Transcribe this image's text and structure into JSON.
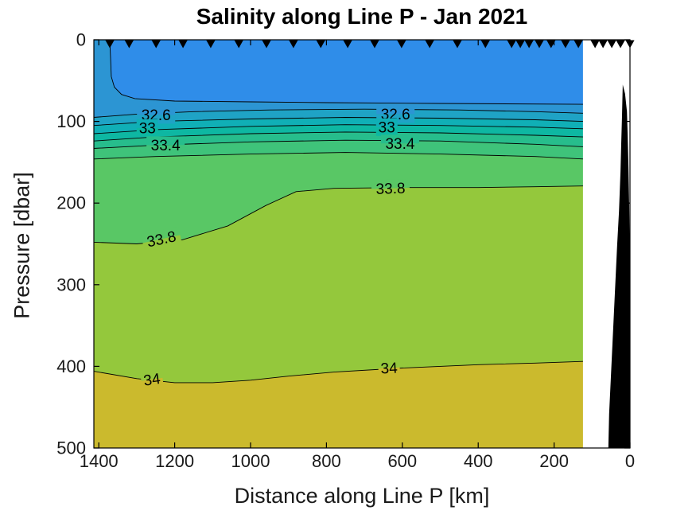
{
  "title": "Salinity along Line P - Jan 2021",
  "axes": {
    "xlabel": "Distance along Line P [km]",
    "ylabel": "Pressure [dbar]",
    "x_ticks": [
      1400,
      1200,
      1000,
      800,
      600,
      400,
      200,
      0
    ],
    "y_ticks": [
      0,
      100,
      200,
      300,
      400,
      500
    ],
    "x_max": 1413,
    "y_max": 500,
    "x_direction": "reversed",
    "box": true,
    "tick_dir": "in"
  },
  "chart_data": {
    "type": "heatmap",
    "subtype": "filled-contour-section",
    "title": "Salinity along Line P - Jan 2021",
    "xlabel": "Distance along Line P [km]",
    "ylabel": "Pressure [dbar]",
    "xlim": [
      1413,
      0
    ],
    "ylim": [
      0,
      500
    ],
    "data_extent_km": [
      124,
      1413
    ],
    "contour_interval": 0.2,
    "labeled_levels": [
      32.6,
      33,
      33.4,
      33.8,
      34
    ],
    "contours": {
      "surface_outcrop": {
        "draw": false,
        "points": [
          [
            1413,
            0
          ],
          [
            1371,
            0
          ]
        ]
      },
      "surface_main": {
        "draw": false,
        "points": [
          [
            1371,
            0
          ],
          [
            124,
            0
          ]
        ]
      },
      "floor": {
        "draw": false,
        "points": [
          [
            1413,
            500
          ],
          [
            124,
            500
          ]
        ]
      },
      "32.4": {
        "draw": true,
        "points": [
          [
            1371,
            0
          ],
          [
            1369,
            22
          ],
          [
            1367,
            45
          ],
          [
            1359,
            58
          ],
          [
            1340,
            67
          ],
          [
            1305,
            72
          ],
          [
            1200,
            75
          ],
          [
            1000,
            76
          ],
          [
            800,
            77
          ],
          [
            500,
            78
          ],
          [
            124,
            79
          ]
        ]
      },
      "32.6": {
        "draw": true,
        "points": [
          [
            1413,
            95
          ],
          [
            1300,
            91
          ],
          [
            1150,
            88
          ],
          [
            950,
            86
          ],
          [
            700,
            85
          ],
          [
            450,
            86
          ],
          [
            250,
            88
          ],
          [
            124,
            90
          ]
        ]
      },
      "32.8": {
        "draw": true,
        "points": [
          [
            1413,
            105
          ],
          [
            1250,
            100
          ],
          [
            1000,
            97
          ],
          [
            750,
            95
          ],
          [
            500,
            96
          ],
          [
            250,
            98
          ],
          [
            124,
            100
          ]
        ]
      },
      "33": {
        "draw": true,
        "points": [
          [
            1413,
            115
          ],
          [
            1250,
            110
          ],
          [
            1000,
            106
          ],
          [
            750,
            104
          ],
          [
            500,
            105
          ],
          [
            250,
            107
          ],
          [
            124,
            109
          ]
        ]
      },
      "33.2": {
        "draw": true,
        "points": [
          [
            1413,
            124
          ],
          [
            1250,
            119
          ],
          [
            1000,
            115
          ],
          [
            750,
            113
          ],
          [
            500,
            114
          ],
          [
            250,
            117
          ],
          [
            124,
            119
          ]
        ]
      },
      "33.4": {
        "draw": true,
        "points": [
          [
            1413,
            133
          ],
          [
            1250,
            129
          ],
          [
            1000,
            125
          ],
          [
            750,
            123
          ],
          [
            500,
            124
          ],
          [
            250,
            128
          ],
          [
            124,
            131
          ]
        ]
      },
      "33.6": {
        "draw": true,
        "points": [
          [
            1413,
            146
          ],
          [
            1250,
            143
          ],
          [
            1000,
            140
          ],
          [
            750,
            138
          ],
          [
            500,
            140
          ],
          [
            250,
            143
          ],
          [
            124,
            146
          ]
        ]
      },
      "33.8": {
        "draw": true,
        "points": [
          [
            1413,
            248
          ],
          [
            1300,
            250
          ],
          [
            1180,
            245
          ],
          [
            1060,
            228
          ],
          [
            960,
            203
          ],
          [
            880,
            186
          ],
          [
            780,
            182
          ],
          [
            600,
            181
          ],
          [
            400,
            181
          ],
          [
            250,
            180
          ],
          [
            124,
            179
          ]
        ]
      },
      "34": {
        "draw": true,
        "points": [
          [
            1413,
            406
          ],
          [
            1300,
            415
          ],
          [
            1200,
            420
          ],
          [
            1100,
            420
          ],
          [
            1000,
            417
          ],
          [
            900,
            412
          ],
          [
            780,
            407
          ],
          [
            600,
            402
          ],
          [
            400,
            398
          ],
          [
            250,
            396
          ],
          [
            124,
            394
          ]
        ]
      }
    },
    "bands": [
      {
        "range": [
          null,
          32.4
        ],
        "fill": "#2F8DE9",
        "top": [
          "surface_main"
        ],
        "bottom": [
          "32.4"
        ]
      },
      {
        "range": [
          32.4,
          32.6
        ],
        "fill": "#2C95D3",
        "top": [
          "surface_outcrop",
          "32.4"
        ],
        "bottom": [
          "32.6"
        ]
      },
      {
        "range": [
          32.6,
          32.8
        ],
        "fill": "#1FA3C5",
        "top": [
          "32.6"
        ],
        "bottom": [
          "32.8"
        ]
      },
      {
        "range": [
          32.8,
          33
        ],
        "fill": "#10AFB6",
        "top": [
          "32.8"
        ],
        "bottom": [
          "33"
        ]
      },
      {
        "range": [
          33,
          33.2
        ],
        "fill": "#0EB7A2",
        "top": [
          "33"
        ],
        "bottom": [
          "33.2"
        ]
      },
      {
        "range": [
          33.2,
          33.4
        ],
        "fill": "#27BD8C",
        "top": [
          "33.2"
        ],
        "bottom": [
          "33.4"
        ]
      },
      {
        "range": [
          33.4,
          33.6
        ],
        "fill": "#3FC37A",
        "top": [
          "33.4"
        ],
        "bottom": [
          "33.6"
        ]
      },
      {
        "range": [
          33.6,
          33.8
        ],
        "fill": "#59C765",
        "top": [
          "33.6"
        ],
        "bottom": [
          "33.8"
        ]
      },
      {
        "range": [
          33.8,
          34
        ],
        "fill": "#94C83C",
        "top": [
          "33.8"
        ],
        "bottom": [
          "34"
        ]
      },
      {
        "range": [
          34,
          null
        ],
        "fill": "#CBBA2D",
        "top": [
          "34"
        ],
        "bottom": [
          "floor"
        ]
      }
    ],
    "contour_labels": [
      {
        "text": "32.6",
        "level": 32.6,
        "km": 1249,
        "dbar": 92,
        "rot": 0
      },
      {
        "text": "33",
        "level": 33,
        "km": 1272,
        "dbar": 108,
        "rot": 0
      },
      {
        "text": "33.4",
        "level": 33.4,
        "km": 1224,
        "dbar": 129,
        "rot": 0
      },
      {
        "text": "32.6",
        "level": 32.6,
        "km": 618,
        "dbar": 91,
        "rot": 0
      },
      {
        "text": "33",
        "level": 33,
        "km": 641,
        "dbar": 107,
        "rot": 0
      },
      {
        "text": "33.4",
        "level": 33.4,
        "km": 606,
        "dbar": 127,
        "rot": 0
      },
      {
        "text": "33.8",
        "level": 33.8,
        "km": 1235,
        "dbar": 244,
        "rot": -12
      },
      {
        "text": "33.8",
        "level": 33.8,
        "km": 631,
        "dbar": 182,
        "rot": -2
      },
      {
        "text": "34",
        "level": 34,
        "km": 1260,
        "dbar": 416,
        "rot": -8
      },
      {
        "text": "34",
        "level": 34,
        "km": 635,
        "dbar": 402,
        "rot": -3
      }
    ],
    "stations_km": [
      1371,
      1320,
      1249,
      1178,
      1105,
      1031,
      958,
      887,
      815,
      744,
      673,
      602,
      528,
      455,
      381,
      312,
      289,
      266,
      239,
      208,
      170,
      136,
      92,
      71,
      48,
      25,
      0
    ],
    "station_marker": "filled-down-triangle",
    "bathymetry_color": "#000000",
    "bathymetry": [
      [
        19,
        55
      ],
      [
        13,
        66
      ],
      [
        8,
        88
      ],
      [
        6,
        117
      ],
      [
        4,
        156
      ],
      [
        2,
        205
      ],
      [
        0,
        273
      ],
      [
        0,
        500
      ],
      [
        57,
        500
      ],
      [
        55,
        458
      ],
      [
        50,
        409
      ],
      [
        46,
        370
      ],
      [
        42,
        331
      ],
      [
        38,
        292
      ],
      [
        34,
        253
      ],
      [
        29,
        210
      ],
      [
        25,
        161
      ],
      [
        23,
        127
      ],
      [
        21,
        93
      ],
      [
        19,
        55
      ]
    ],
    "contour_line_color": "#000000",
    "axis_color": "#000000"
  }
}
